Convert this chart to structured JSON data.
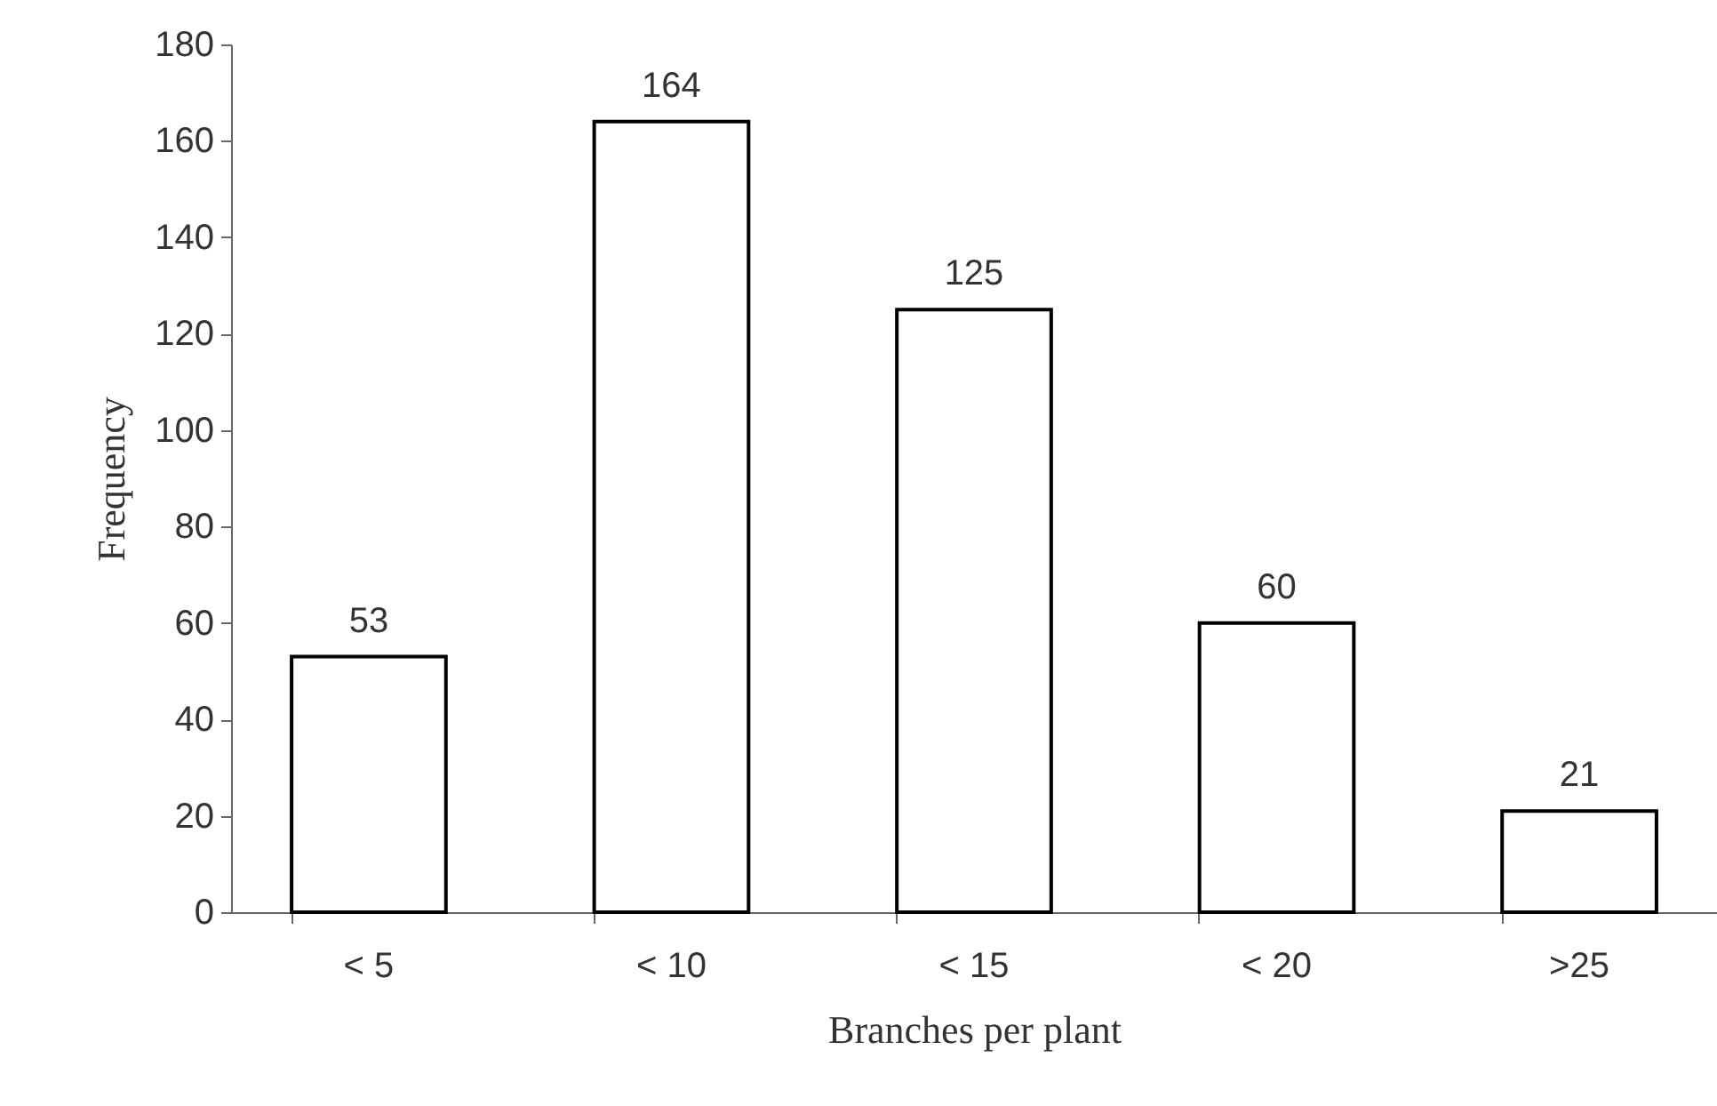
{
  "chart_data": {
    "type": "bar",
    "xlabel": "Branches per plant",
    "ylabel": "Frequency",
    "categories": [
      "< 5",
      "< 10",
      "< 15",
      "< 20",
      ">25"
    ],
    "values": [
      53,
      164,
      125,
      60,
      21
    ],
    "color": "#ffffff",
    "ylim": [
      0,
      180
    ],
    "yticks": [
      0,
      20,
      40,
      60,
      80,
      100,
      120,
      140,
      160,
      180
    ],
    "grid": false,
    "data_labels": true
  }
}
